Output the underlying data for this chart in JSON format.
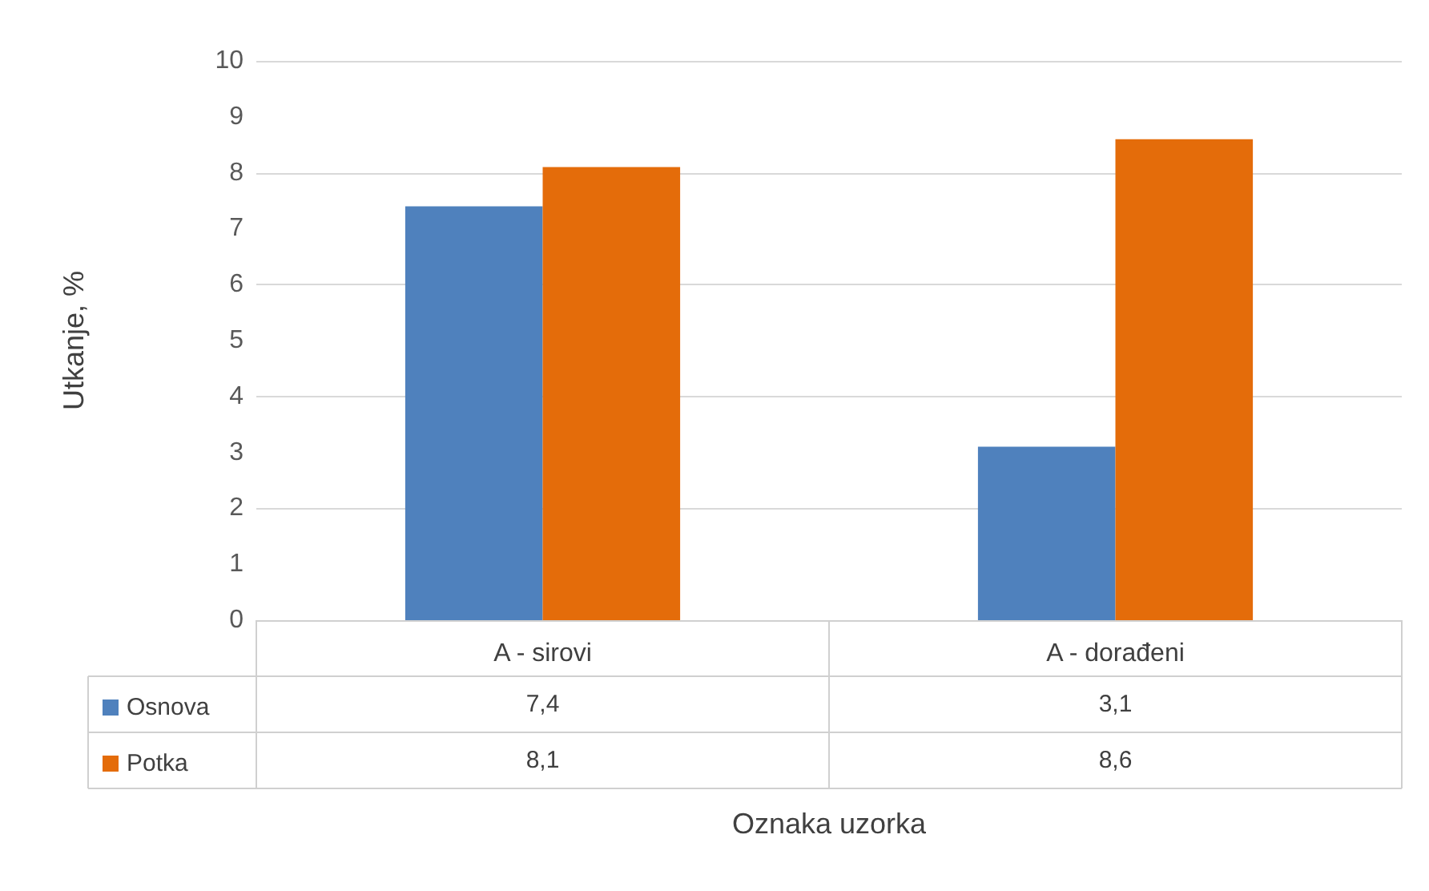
{
  "chart_data": {
    "type": "bar",
    "xlabel": "Oznaka uzorka",
    "ylabel": "Utkanje, %",
    "categories": [
      "A - sirovi",
      "A - dorađeni"
    ],
    "series": [
      {
        "name": "Osnova",
        "color": "#4f81bd",
        "values": [
          7.4,
          3.1
        ],
        "value_labels": [
          "7,4",
          "3,1"
        ]
      },
      {
        "name": "Potka",
        "color": "#e46c0a",
        "values": [
          8.1,
          8.6
        ],
        "value_labels": [
          "8,1",
          "8,6"
        ]
      }
    ],
    "ylim": [
      0,
      10
    ],
    "yticks": [
      0,
      1,
      2,
      3,
      4,
      5,
      6,
      7,
      8,
      9,
      10
    ],
    "grid": "y",
    "legend": "bottom"
  }
}
